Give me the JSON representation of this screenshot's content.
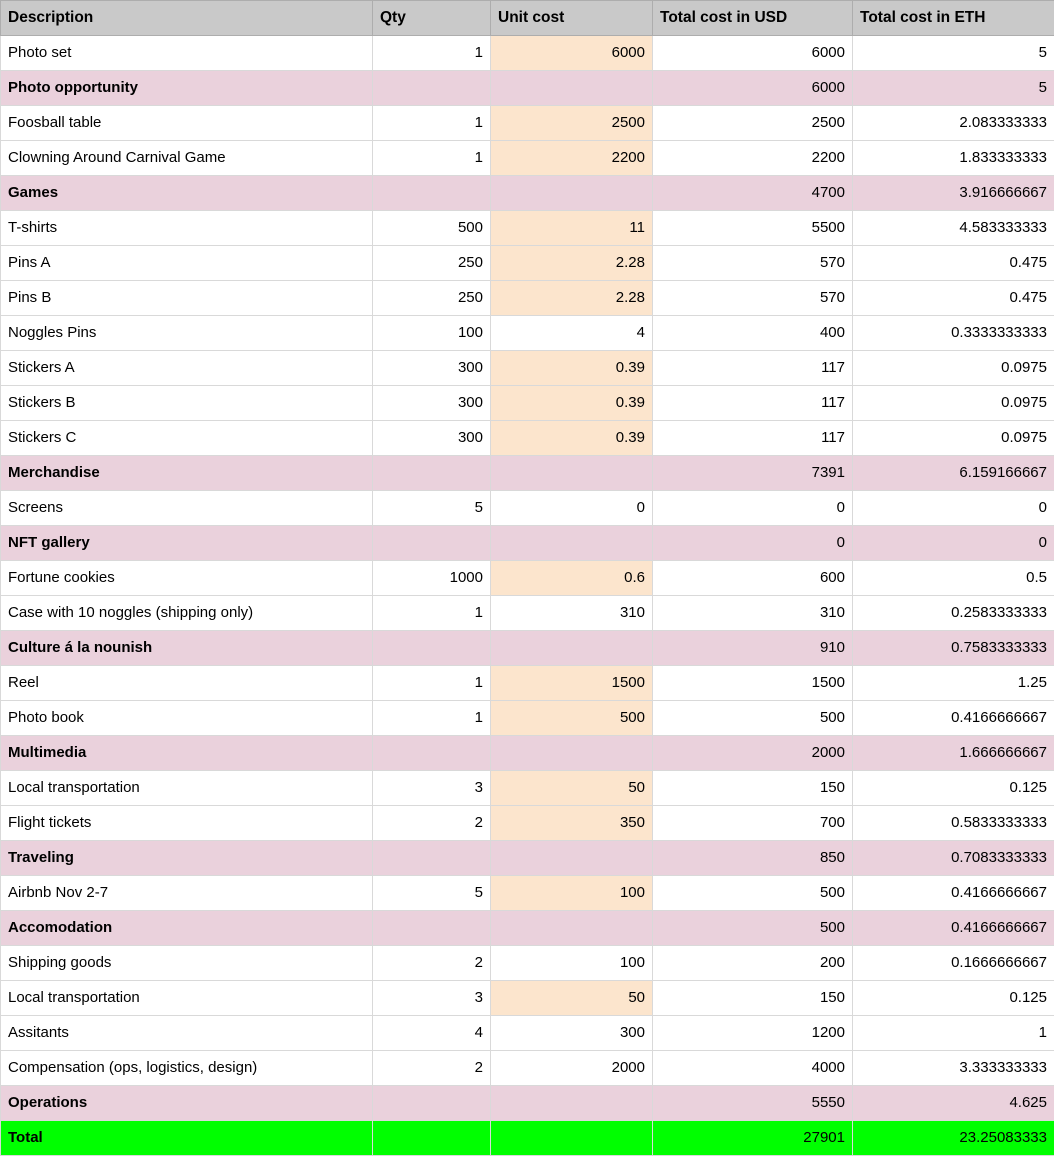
{
  "colors": {
    "header_bg": "#c9c9c9",
    "category_bg": "#ead1dc",
    "unit_highlight_bg": "#fce5cd",
    "total_bg": "#00ff00",
    "gridline": "#d9d9d9"
  },
  "table": {
    "columns": [
      "Description",
      "Qty",
      "Unit cost",
      "Total cost in USD",
      "Total cost in ETH"
    ],
    "rows": [
      {
        "type": "item",
        "description": "Photo set",
        "qty": "1",
        "unit_cost": "6000",
        "unit_highlight": true,
        "total_usd": "6000",
        "total_eth": "5"
      },
      {
        "type": "category",
        "description": "Photo opportunity",
        "qty": "",
        "unit_cost": "",
        "unit_highlight": false,
        "total_usd": "6000",
        "total_eth": "5"
      },
      {
        "type": "item",
        "description": "Foosball table",
        "qty": "1",
        "unit_cost": "2500",
        "unit_highlight": true,
        "total_usd": "2500",
        "total_eth": "2.083333333"
      },
      {
        "type": "item",
        "description": "Clowning Around Carnival Game",
        "qty": "1",
        "unit_cost": "2200",
        "unit_highlight": true,
        "total_usd": "2200",
        "total_eth": "1.833333333"
      },
      {
        "type": "category",
        "description": "Games",
        "qty": "",
        "unit_cost": "",
        "unit_highlight": false,
        "total_usd": "4700",
        "total_eth": "3.916666667"
      },
      {
        "type": "item",
        "description": "T-shirts",
        "qty": "500",
        "unit_cost": "11",
        "unit_highlight": true,
        "total_usd": "5500",
        "total_eth": "4.583333333"
      },
      {
        "type": "item",
        "description": "Pins A",
        "qty": "250",
        "unit_cost": "2.28",
        "unit_highlight": true,
        "total_usd": "570",
        "total_eth": "0.475"
      },
      {
        "type": "item",
        "description": "Pins B",
        "qty": "250",
        "unit_cost": "2.28",
        "unit_highlight": true,
        "total_usd": "570",
        "total_eth": "0.475"
      },
      {
        "type": "item",
        "description": "Noggles Pins",
        "qty": "100",
        "unit_cost": "4",
        "unit_highlight": false,
        "total_usd": "400",
        "total_eth": "0.3333333333"
      },
      {
        "type": "item",
        "description": "Stickers A",
        "qty": "300",
        "unit_cost": "0.39",
        "unit_highlight": true,
        "total_usd": "117",
        "total_eth": "0.0975"
      },
      {
        "type": "item",
        "description": "Stickers B",
        "qty": "300",
        "unit_cost": "0.39",
        "unit_highlight": true,
        "total_usd": "117",
        "total_eth": "0.0975"
      },
      {
        "type": "item",
        "description": "Stickers C",
        "qty": "300",
        "unit_cost": "0.39",
        "unit_highlight": true,
        "total_usd": "117",
        "total_eth": "0.0975"
      },
      {
        "type": "category",
        "description": "Merchandise",
        "qty": "",
        "unit_cost": "",
        "unit_highlight": false,
        "total_usd": "7391",
        "total_eth": "6.159166667"
      },
      {
        "type": "item",
        "description": "Screens",
        "qty": "5",
        "unit_cost": "0",
        "unit_highlight": false,
        "total_usd": "0",
        "total_eth": "0"
      },
      {
        "type": "category",
        "description": "NFT gallery",
        "qty": "",
        "unit_cost": "",
        "unit_highlight": false,
        "total_usd": "0",
        "total_eth": "0"
      },
      {
        "type": "item",
        "description": "Fortune cookies",
        "qty": "1000",
        "unit_cost": "0.6",
        "unit_highlight": true,
        "total_usd": "600",
        "total_eth": "0.5"
      },
      {
        "type": "item",
        "description": "Case with 10 noggles (shipping only)",
        "qty": "1",
        "unit_cost": "310",
        "unit_highlight": false,
        "total_usd": "310",
        "total_eth": "0.2583333333"
      },
      {
        "type": "category",
        "description": "Culture á la nounish",
        "qty": "",
        "unit_cost": "",
        "unit_highlight": false,
        "total_usd": "910",
        "total_eth": "0.7583333333"
      },
      {
        "type": "item",
        "description": "Reel",
        "qty": "1",
        "unit_cost": "1500",
        "unit_highlight": true,
        "total_usd": "1500",
        "total_eth": "1.25"
      },
      {
        "type": "item",
        "description": "Photo book",
        "qty": "1",
        "unit_cost": "500",
        "unit_highlight": true,
        "total_usd": "500",
        "total_eth": "0.4166666667"
      },
      {
        "type": "category",
        "description": "Multimedia",
        "qty": "",
        "unit_cost": "",
        "unit_highlight": false,
        "total_usd": "2000",
        "total_eth": "1.666666667"
      },
      {
        "type": "item",
        "description": "Local transportation",
        "qty": "3",
        "unit_cost": "50",
        "unit_highlight": true,
        "total_usd": "150",
        "total_eth": "0.125"
      },
      {
        "type": "item",
        "description": "Flight tickets",
        "qty": "2",
        "unit_cost": "350",
        "unit_highlight": true,
        "total_usd": "700",
        "total_eth": "0.5833333333"
      },
      {
        "type": "category",
        "description": "Traveling",
        "qty": "",
        "unit_cost": "",
        "unit_highlight": false,
        "total_usd": "850",
        "total_eth": "0.7083333333"
      },
      {
        "type": "item",
        "description": "Airbnb Nov 2-7",
        "qty": "5",
        "unit_cost": "100",
        "unit_highlight": true,
        "total_usd": "500",
        "total_eth": "0.4166666667"
      },
      {
        "type": "category",
        "description": "Accomodation",
        "qty": "",
        "unit_cost": "",
        "unit_highlight": false,
        "total_usd": "500",
        "total_eth": "0.4166666667"
      },
      {
        "type": "item",
        "description": "Shipping goods",
        "qty": "2",
        "unit_cost": "100",
        "unit_highlight": false,
        "total_usd": "200",
        "total_eth": "0.1666666667"
      },
      {
        "type": "item",
        "description": "Local transportation",
        "qty": "3",
        "unit_cost": "50",
        "unit_highlight": true,
        "total_usd": "150",
        "total_eth": "0.125"
      },
      {
        "type": "item",
        "description": "Assitants",
        "qty": "4",
        "unit_cost": "300",
        "unit_highlight": false,
        "total_usd": "1200",
        "total_eth": "1"
      },
      {
        "type": "item",
        "description": "Compensation (ops, logistics, design)",
        "qty": "2",
        "unit_cost": "2000",
        "unit_highlight": false,
        "total_usd": "4000",
        "total_eth": "3.333333333"
      },
      {
        "type": "category",
        "description": "Operations",
        "qty": "",
        "unit_cost": "",
        "unit_highlight": false,
        "total_usd": "5550",
        "total_eth": "4.625"
      },
      {
        "type": "total",
        "description": "Total",
        "qty": "",
        "unit_cost": "",
        "unit_highlight": false,
        "total_usd": "27901",
        "total_eth": "23.25083333"
      }
    ]
  }
}
